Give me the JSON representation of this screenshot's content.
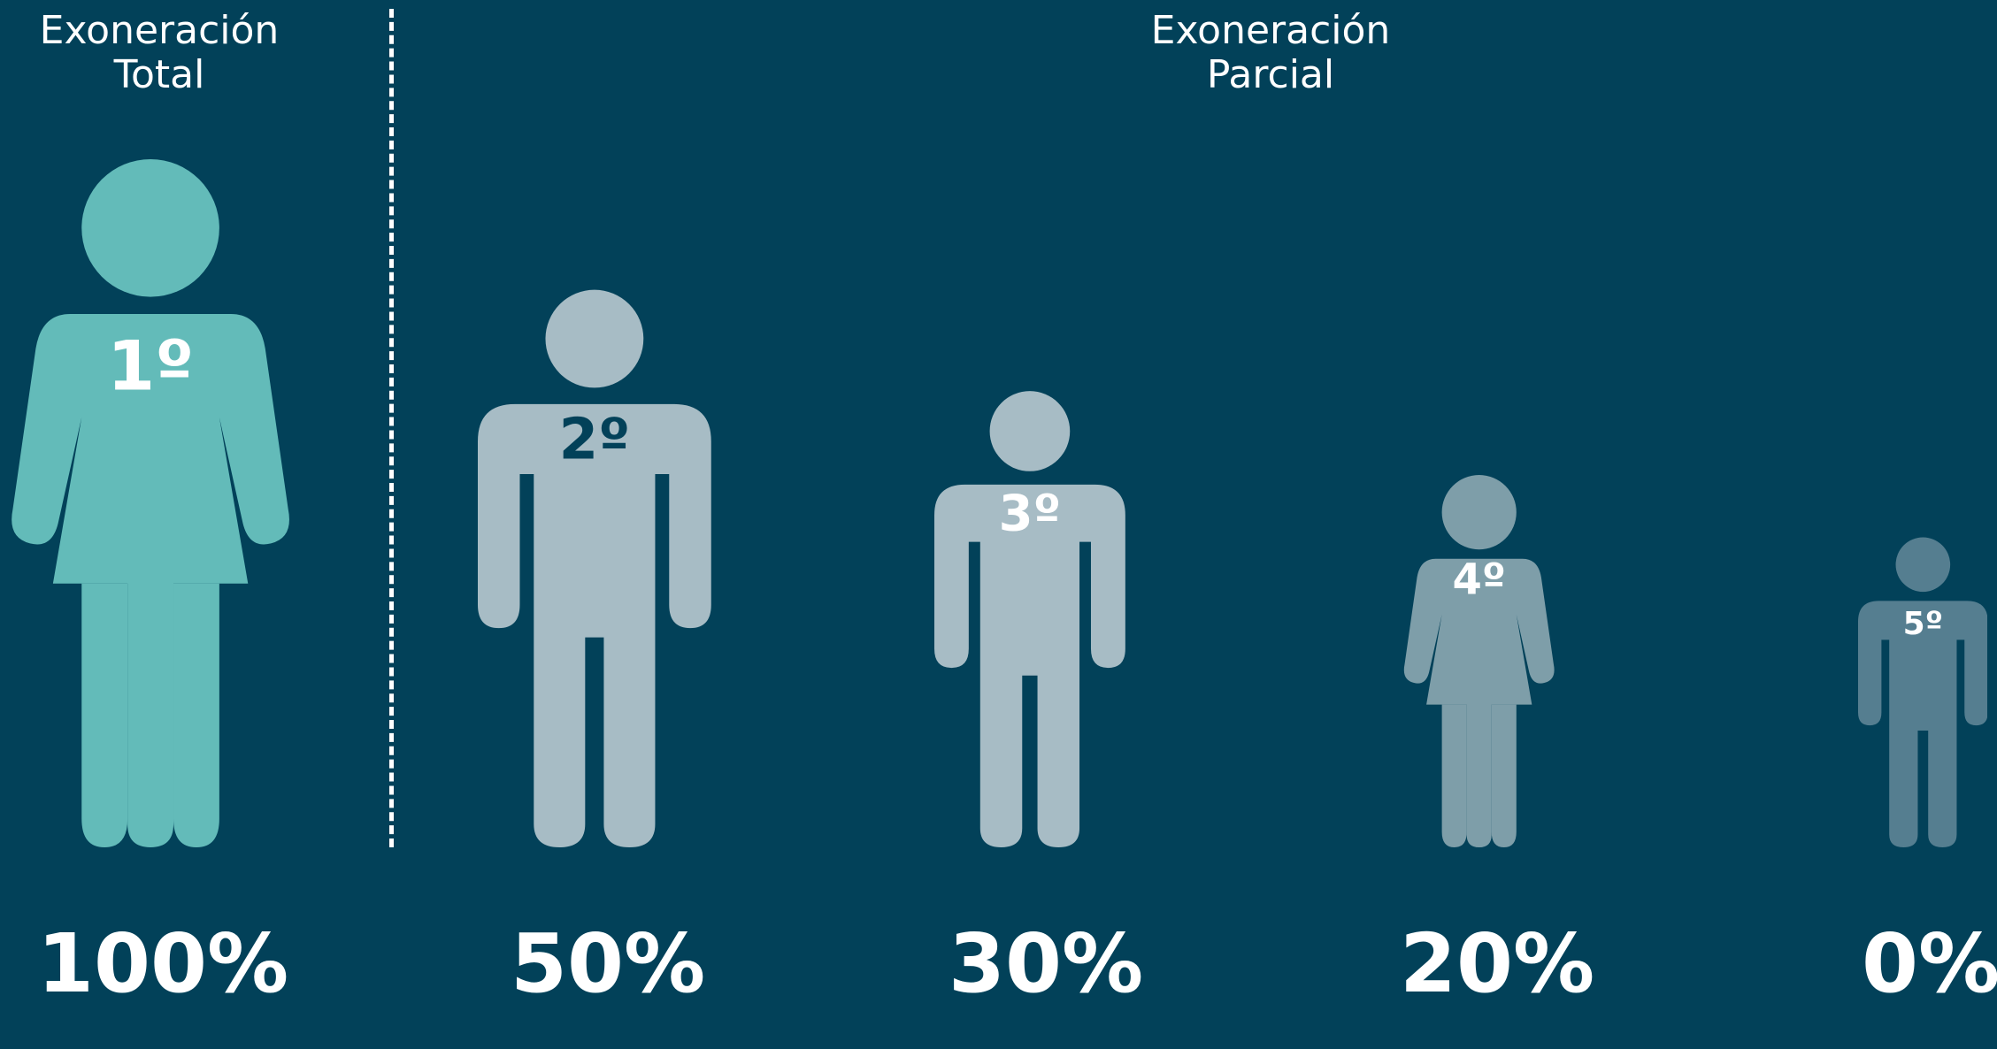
{
  "headings": {
    "total": [
      "Exoneración",
      "Total"
    ],
    "parcial": [
      "Exoneración",
      "Parcial"
    ]
  },
  "figures": [
    {
      "rank": "1º",
      "percent": "100%",
      "gender": "female",
      "color": "#63bbb9",
      "rank_color": "#ffffff"
    },
    {
      "rank": "2º",
      "percent": "50%",
      "gender": "male",
      "color": "#a7bcc5",
      "rank_color": "#024159"
    },
    {
      "rank": "3º",
      "percent": "30%",
      "gender": "male",
      "color": "#a7bcc5",
      "rank_color": "#ffffff"
    },
    {
      "rank": "4º",
      "percent": "20%",
      "gender": "female",
      "color": "#7e9ea9",
      "rank_color": "#ffffff"
    },
    {
      "rank": "5º",
      "percent": "0%",
      "gender": "male",
      "color": "#557e90",
      "rank_color": "#ffffff"
    }
  ]
}
